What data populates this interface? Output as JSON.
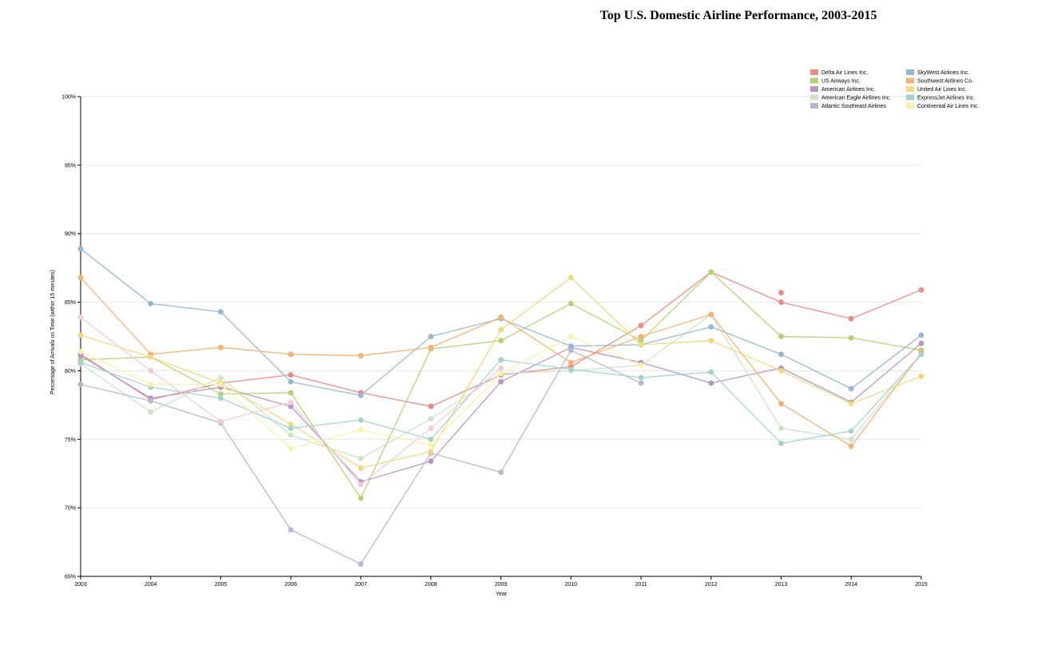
{
  "chart_data": {
    "type": "line",
    "title": "Top U.S. Domestic Airline Performance, 2003-2015",
    "xlabel": "Year",
    "ylabel": "Percentage of Arrivals on Time (within 15 minutes)",
    "x": [
      2003,
      2004,
      2005,
      2006,
      2007,
      2008,
      2009,
      2010,
      2011,
      2012,
      2013,
      2014,
      2015
    ],
    "ylim": [
      65,
      100
    ],
    "yticks": [
      65,
      70,
      75,
      80,
      85,
      90,
      95,
      100
    ],
    "ytick_labels": [
      "65%",
      "70%",
      "75%",
      "80%",
      "85%",
      "90%",
      "95%",
      "100%"
    ],
    "grid": true,
    "legend_position": "top-right",
    "series": [
      {
        "name": "Delta Air Lines Inc.",
        "color": "#ef8a7f",
        "values": [
          81.2,
          77.9,
          79.1,
          79.7,
          78.4,
          77.4,
          79.7,
          80.3,
          83.3,
          87.2,
          85.0,
          83.8,
          85.9
        ]
      },
      {
        "name": "US Airways Inc.",
        "color": "#b3d36f",
        "values": [
          80.8,
          81.0,
          78.3,
          78.4,
          70.7,
          81.6,
          82.2,
          84.9,
          82.2,
          87.2,
          82.5,
          82.4,
          81.5
        ]
      },
      {
        "name": "American Airlines Inc.",
        "color": "#b894c4",
        "values": [
          81.1,
          78.0,
          78.8,
          77.4,
          71.9,
          73.4,
          79.2,
          81.7,
          80.6,
          79.1,
          80.2,
          77.7,
          82.0
        ]
      },
      {
        "name": "American Eagle Airlines Inc.",
        "color": "#cae5c2",
        "values": [
          80.5,
          77.0,
          79.5,
          75.3,
          73.6,
          76.5,
          79.8,
          80.0,
          80.4,
          84.1,
          75.8,
          75.0,
          81.2
        ]
      },
      {
        "name": "Atlantic Southeast Airlines",
        "color": "#b9b5d2",
        "values": [
          79.0,
          77.8,
          76.2,
          68.4,
          65.9,
          74.0,
          72.6,
          81.5,
          79.1,
          null,
          null,
          null,
          null
        ]
      },
      {
        "name": "SkyWest Airlines Inc.",
        "color": "#93b8d6",
        "values": [
          88.9,
          84.9,
          84.3,
          79.2,
          78.2,
          82.5,
          83.8,
          81.8,
          81.9,
          83.2,
          81.2,
          78.7,
          82.6
        ]
      },
      {
        "name": "Southwest Airlines Co.",
        "color": "#f8b06b",
        "values": [
          86.8,
          81.2,
          81.7,
          81.2,
          81.1,
          81.7,
          83.9,
          80.6,
          82.5,
          84.1,
          77.6,
          74.5,
          81.3
        ]
      },
      {
        "name": "United Air Lines Inc.",
        "color": "#f2d976",
        "values": [
          82.6,
          81.0,
          79.1,
          76.1,
          72.9,
          74.1,
          83.0,
          86.8,
          81.9,
          82.2,
          80.0,
          77.6,
          79.6
        ]
      },
      {
        "name": "ExpressJet Airlines Inc.",
        "color": "#a0d5cd",
        "values": [
          80.6,
          78.8,
          78.0,
          75.8,
          76.4,
          75.0,
          80.8,
          80.1,
          79.5,
          79.9,
          74.7,
          75.6,
          81.2
        ]
      },
      {
        "name": "Continental Air Lines Inc.",
        "color": "#f8f3a4",
        "values": [
          81.4,
          79.0,
          79.0,
          74.3,
          75.7,
          74.6,
          79.8,
          82.5,
          80.4,
          null,
          null,
          null,
          null
        ]
      },
      {
        "name": "",
        "color": "#f4c8dd",
        "values": [
          83.9,
          80.0,
          76.3,
          77.7,
          71.7,
          75.8,
          80.2,
          null,
          null,
          null,
          null,
          null,
          null
        ]
      }
    ],
    "extra_points": [
      {
        "x": 2013,
        "y": 85.7,
        "color": "#ef8a7f"
      }
    ]
  }
}
